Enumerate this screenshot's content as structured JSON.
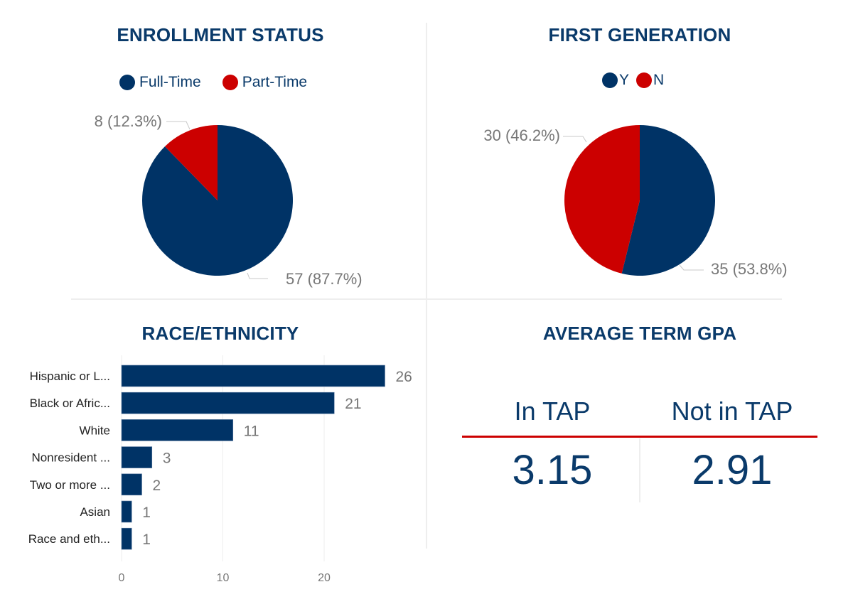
{
  "colors": {
    "navy": "#003366",
    "red": "#cc0000",
    "label_gray": "#777777",
    "grid": "#eeeeee"
  },
  "enrollment": {
    "title": "ENROLLMENT STATUS",
    "legend": [
      {
        "label": "Full-Time",
        "color": "#003366"
      },
      {
        "label": "Part-Time",
        "color": "#cc0000"
      }
    ]
  },
  "first_gen": {
    "title": "FIRST GENERATION",
    "legend": [
      {
        "label": "Y",
        "color": "#003366"
      },
      {
        "label": "N",
        "color": "#cc0000"
      }
    ]
  },
  "race": {
    "title": "RACE/ETHNICITY"
  },
  "gpa": {
    "title": "AVERAGE TERM GPA",
    "columns": [
      {
        "header": "In TAP",
        "value": "3.15"
      },
      {
        "header": "Not in TAP",
        "value": "2.91"
      }
    ]
  },
  "chart_data": [
    {
      "type": "pie",
      "title": "ENROLLMENT STATUS",
      "legend_position": "top",
      "slices": [
        {
          "label": "Full-Time",
          "value": 57,
          "percent": 87.7,
          "data_label": "57 (87.7%)",
          "color": "#003366"
        },
        {
          "label": "Part-Time",
          "value": 8,
          "percent": 12.3,
          "data_label": "8 (12.3%)",
          "color": "#cc0000"
        }
      ]
    },
    {
      "type": "pie",
      "title": "FIRST GENERATION",
      "legend_position": "top",
      "slices": [
        {
          "label": "Y",
          "value": 35,
          "percent": 53.8,
          "data_label": "35 (53.8%)",
          "color": "#003366"
        },
        {
          "label": "N",
          "value": 30,
          "percent": 46.2,
          "data_label": "30 (46.2%)",
          "color": "#cc0000"
        }
      ]
    },
    {
      "type": "bar",
      "orientation": "horizontal",
      "title": "RACE/ETHNICITY",
      "categories": [
        "Hispanic or L...",
        "Black or Afric...",
        "White",
        "Nonresident ...",
        "Two or more ...",
        "Asian",
        "Race and eth..."
      ],
      "values": [
        26,
        21,
        11,
        3,
        2,
        1,
        1
      ],
      "xlim": [
        0,
        30
      ],
      "xticks": [
        0,
        10,
        20
      ],
      "grid": true,
      "color": "#003366"
    },
    {
      "type": "table",
      "title": "AVERAGE TERM GPA",
      "columns": [
        "In TAP",
        "Not in TAP"
      ],
      "rows": [
        [
          "3.15",
          "2.91"
        ]
      ]
    }
  ]
}
